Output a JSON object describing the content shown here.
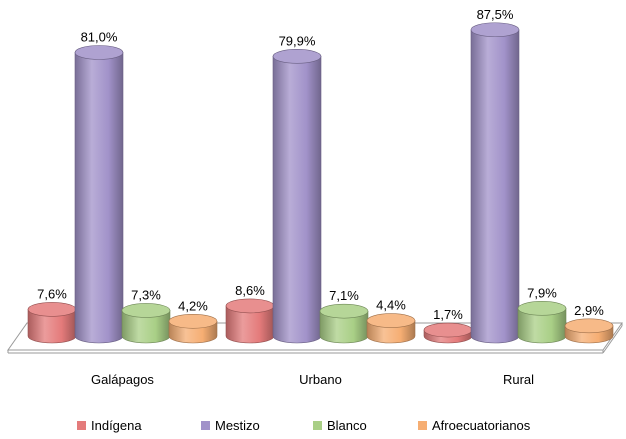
{
  "chart_data": {
    "type": "bar",
    "style": "3d-cylinder",
    "categories": [
      "Galápagos",
      "Urbano",
      "Rural"
    ],
    "series": [
      {
        "name": "Indígena",
        "values": [
          7.6,
          8.6,
          1.7
        ],
        "labels": [
          "7,6%",
          "8,6%",
          "1,7%"
        ],
        "color": "#e47b7b"
      },
      {
        "name": "Mestizo",
        "values": [
          81.0,
          79.9,
          87.5
        ],
        "labels": [
          "81,0%",
          "79,9%",
          "87,5%"
        ],
        "color": "#a192c9"
      },
      {
        "name": "Blanco",
        "values": [
          7.3,
          7.1,
          7.9
        ],
        "labels": [
          "7,3%",
          "7,1%",
          "7,9%"
        ],
        "color": "#a9cf86"
      },
      {
        "name": "Afroecuatorianos",
        "values": [
          4.2,
          4.4,
          2.9
        ],
        "labels": [
          "4,2%",
          "4,4%",
          "2,9%"
        ],
        "color": "#f6ae73"
      }
    ],
    "ylim": [
      0,
      100
    ],
    "legend_position": "bottom",
    "grid": false
  }
}
